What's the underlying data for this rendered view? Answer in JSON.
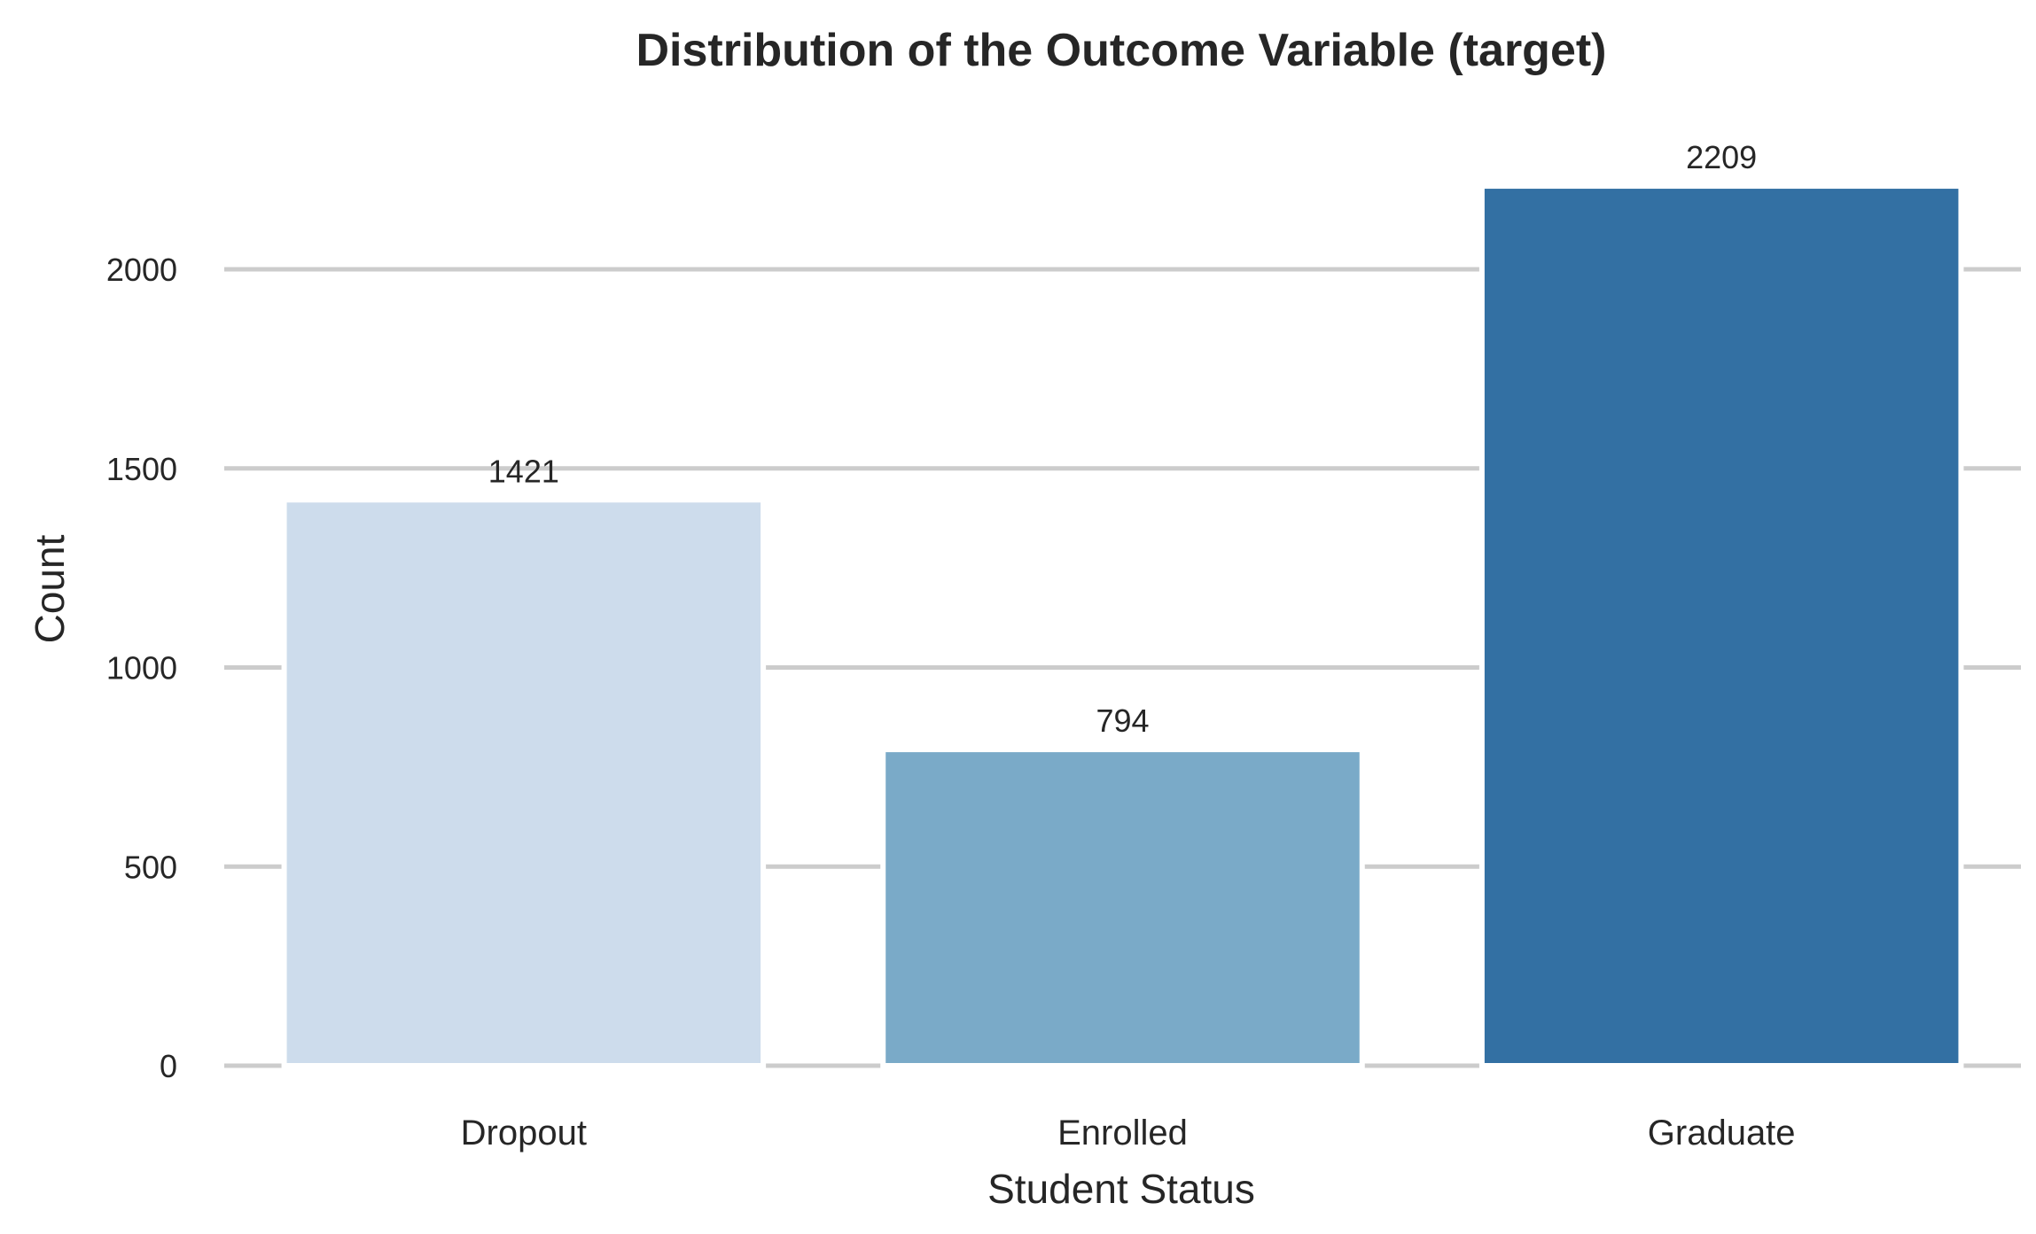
{
  "chart_data": {
    "type": "bar",
    "title": "Distribution of the Outcome Variable (target)",
    "xlabel": "Student Status",
    "ylabel": "Count",
    "categories": [
      "Dropout",
      "Enrolled",
      "Graduate"
    ],
    "values": [
      1421,
      794,
      2209
    ],
    "data_labels": [
      "1421",
      "794",
      "2209"
    ],
    "colors": [
      "#cddcec",
      "#7aaac8",
      "#3370a3"
    ],
    "ylim": [
      0,
      2300
    ],
    "yticks": [
      0,
      500,
      1000,
      1500,
      2000
    ],
    "ytick_labels": [
      "0",
      "500",
      "1000",
      "1500",
      "2000"
    ],
    "grid": true,
    "grid_color": "#cccccc"
  }
}
